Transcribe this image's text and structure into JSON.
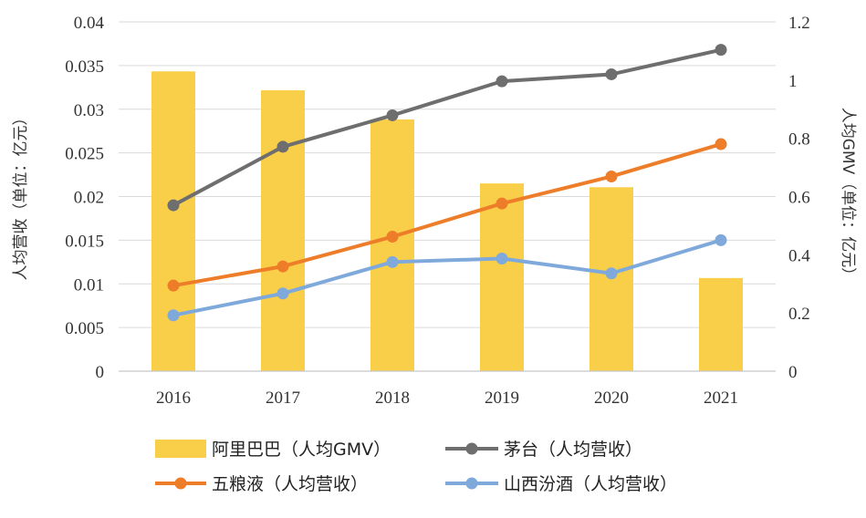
{
  "chart_data": {
    "type": "bar+line",
    "categories": [
      "2016",
      "2017",
      "2018",
      "2019",
      "2020",
      "2021"
    ],
    "left_axis": {
      "label": "人均营收（单位：亿元）",
      "range": [
        0,
        0.04
      ],
      "ticks": [
        "0",
        "0.005",
        "0.01",
        "0.015",
        "0.02",
        "0.025",
        "0.03",
        "0.035",
        "0.04"
      ],
      "tick_values": [
        0,
        0.005,
        0.01,
        0.015,
        0.02,
        0.025,
        0.03,
        0.035,
        0.04
      ]
    },
    "right_axis": {
      "label": "人均GMV（单位：亿元）",
      "range": [
        0,
        1.2
      ],
      "ticks": [
        "0",
        "0.2",
        "0.4",
        "0.6",
        "0.8",
        "1",
        "1.2"
      ],
      "tick_values": [
        0,
        0.2,
        0.4,
        0.6,
        0.8,
        1.0,
        1.2
      ]
    },
    "bars": {
      "name": "阿里巴巴（人均GMV）",
      "axis": "right",
      "color": "#F9CF4A",
      "values": [
        1.03,
        0.965,
        0.865,
        0.645,
        0.632,
        0.32
      ]
    },
    "series": [
      {
        "name": "茅台（人均营收）",
        "axis": "left",
        "color": "#6E6E6E",
        "values": [
          0.019,
          0.0257,
          0.0293,
          0.0332,
          0.034,
          0.0368
        ]
      },
      {
        "name": "五粮液（人均营收）",
        "axis": "left",
        "color": "#EE7D2A",
        "values": [
          0.0098,
          0.012,
          0.0154,
          0.0192,
          0.0223,
          0.026
        ]
      },
      {
        "name": "山西汾酒（人均营收）",
        "axis": "left",
        "color": "#7FA9DB",
        "values": [
          0.0064,
          0.0089,
          0.0125,
          0.0129,
          0.0112,
          0.015
        ]
      }
    ],
    "legend": {
      "position": "bottom",
      "entries": [
        "阿里巴巴（人均GMV）",
        "茅台（人均营收）",
        "五粮液（人均营收）",
        "山西汾酒（人均营收）"
      ]
    },
    "grid": true
  }
}
